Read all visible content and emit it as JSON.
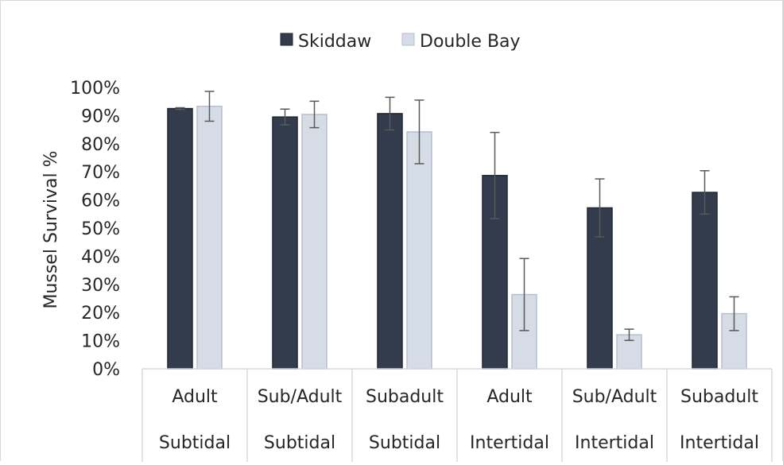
{
  "chart_data": {
    "type": "bar",
    "title": "",
    "xlabel": "",
    "ylabel": "Mussel Survival %",
    "ylim": [
      0,
      100
    ],
    "y_ticks": [
      "0%",
      "10%",
      "20%",
      "30%",
      "40%",
      "50%",
      "60%",
      "70%",
      "80%",
      "90%",
      "100%"
    ],
    "grid": false,
    "legend_position": "top",
    "categories": [
      [
        "Adult",
        "Subtidal"
      ],
      [
        "Sub/Adult",
        "Subtidal"
      ],
      [
        "Subadult",
        "Subtidal"
      ],
      [
        "Adult",
        "Intertidal"
      ],
      [
        "Sub/Adult",
        "Intertidal"
      ],
      [
        "Subadult",
        "Intertidal"
      ]
    ],
    "series": [
      {
        "name": "Skiddaw",
        "color": "#323c4c",
        "values": [
          92.5,
          89.5,
          90.7,
          68.7,
          57.2,
          62.7
        ],
        "error": [
          0.3,
          2.8,
          5.8,
          15.3,
          10.3,
          7.7
        ]
      },
      {
        "name": "Double Bay",
        "color": "#d6dce5",
        "values": [
          93.3,
          90.4,
          84.2,
          26.4,
          12.1,
          19.6
        ],
        "error": [
          5.3,
          4.7,
          11.3,
          12.8,
          2.0,
          6.0
        ]
      }
    ]
  }
}
